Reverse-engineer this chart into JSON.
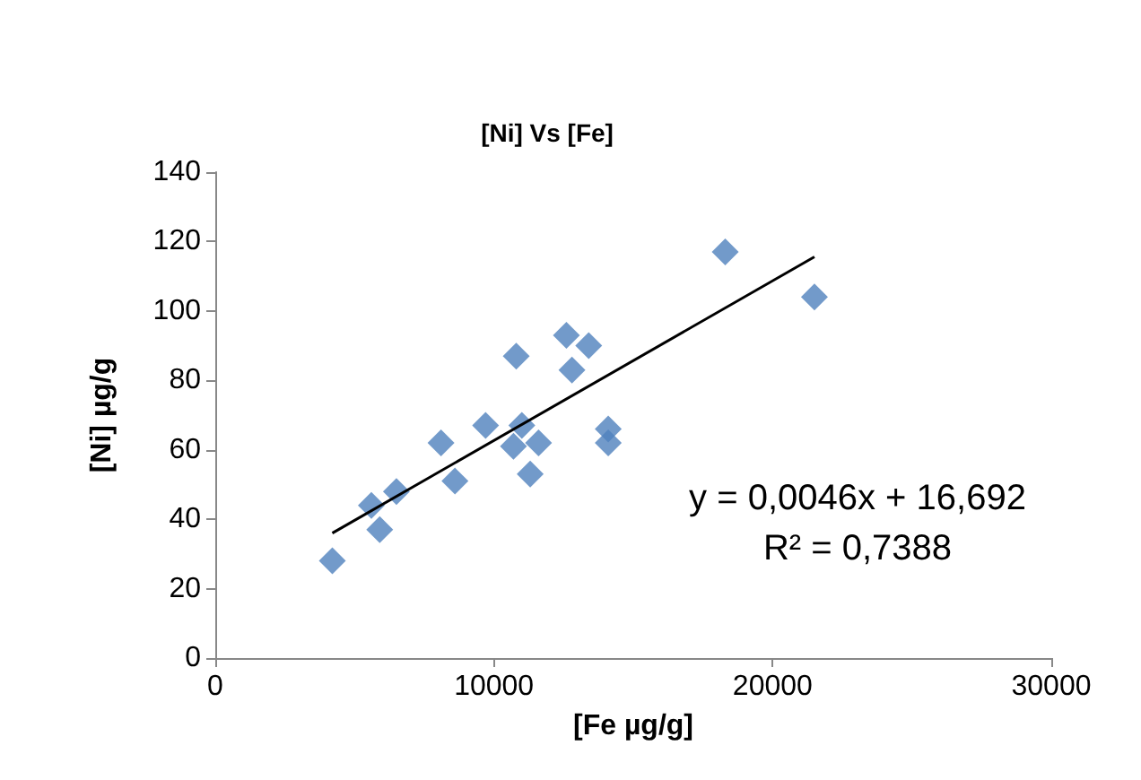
{
  "chart_data": {
    "type": "scatter",
    "title": "[Ni] Vs [Fe]",
    "xlabel": "[Fe µg/g]",
    "ylabel": "[Ni] µg/g",
    "marker": "diamond",
    "grid": false,
    "xlim": [
      0,
      30000
    ],
    "xticks": [
      0,
      10000,
      20000,
      30000
    ],
    "ylim": [
      0,
      140
    ],
    "yticks": [
      0,
      20,
      40,
      60,
      80,
      100,
      120,
      140
    ],
    "series": [
      {
        "color": "#4f81bd",
        "x": [
          4200,
          5600,
          5900,
          6500,
          8100,
          8600,
          9700,
          10800,
          10700,
          11000,
          11300,
          11600,
          12600,
          12800,
          13400,
          14100,
          14100,
          18300,
          21500
        ],
        "values": [
          28,
          44,
          37,
          48,
          62,
          51,
          67,
          87,
          61,
          67,
          53,
          62,
          93,
          83,
          90,
          66,
          62,
          117,
          104
        ]
      },
      {
        "type": "line",
        "color": "#000000",
        "marker": "none",
        "x": [
          4200,
          21500
        ],
        "values": [
          36.0,
          115.6
        ]
      }
    ],
    "annotations": [
      "y = 0,0046x + 16,692",
      "R² = 0,7388"
    ]
  }
}
